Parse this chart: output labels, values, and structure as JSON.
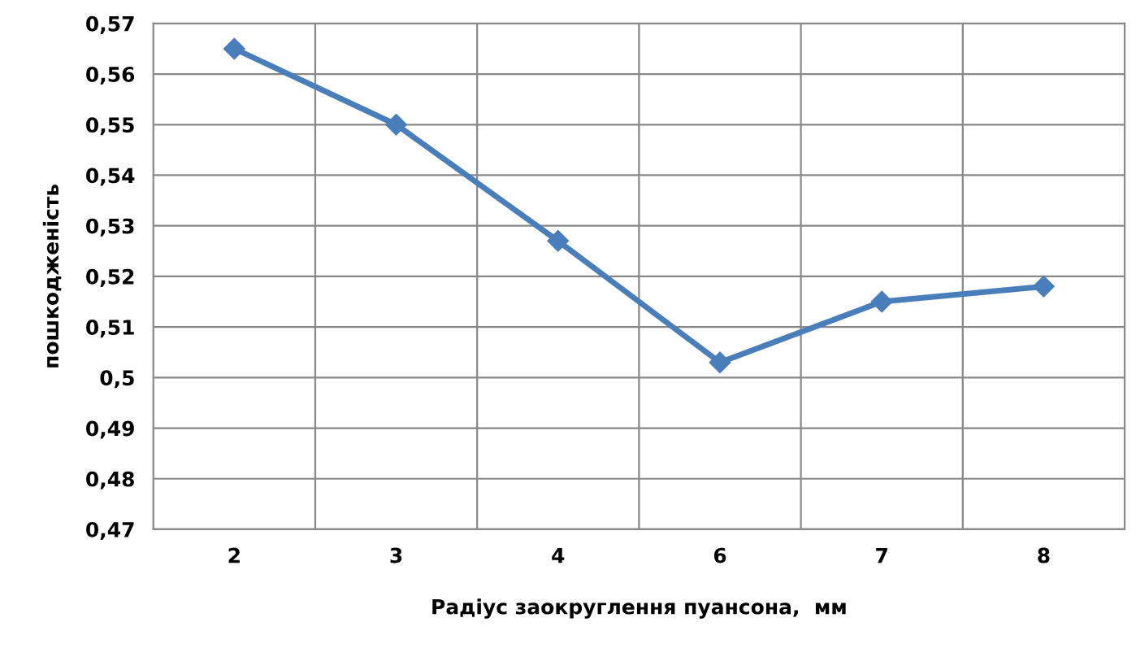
{
  "chart_data": {
    "type": "line",
    "xlabel": "Радіус заокруглення пуансона,  мм",
    "ylabel": "пошкодженість",
    "categories": [
      "2",
      "3",
      "4",
      "6",
      "7",
      "8"
    ],
    "series": [
      {
        "color": "#4a7ebb",
        "values": [
          0.565,
          0.55,
          0.527,
          0.503,
          0.515,
          0.518
        ]
      }
    ],
    "ylim": [
      0.47,
      0.57
    ],
    "yticks": [
      {
        "value": 0.47,
        "label": "0,47"
      },
      {
        "value": 0.48,
        "label": "0,48"
      },
      {
        "value": 0.49,
        "label": "0,49"
      },
      {
        "value": 0.5,
        "label": "0,5"
      },
      {
        "value": 0.51,
        "label": "0,51"
      },
      {
        "value": 0.52,
        "label": "0,52"
      },
      {
        "value": 0.53,
        "label": "0,53"
      },
      {
        "value": 0.54,
        "label": "0,54"
      },
      {
        "value": 0.55,
        "label": "0,55"
      },
      {
        "value": 0.56,
        "label": "0,56"
      },
      {
        "value": 0.57,
        "label": "0,57"
      }
    ],
    "grid": true,
    "marker": "diamond",
    "line_style": "solid"
  }
}
